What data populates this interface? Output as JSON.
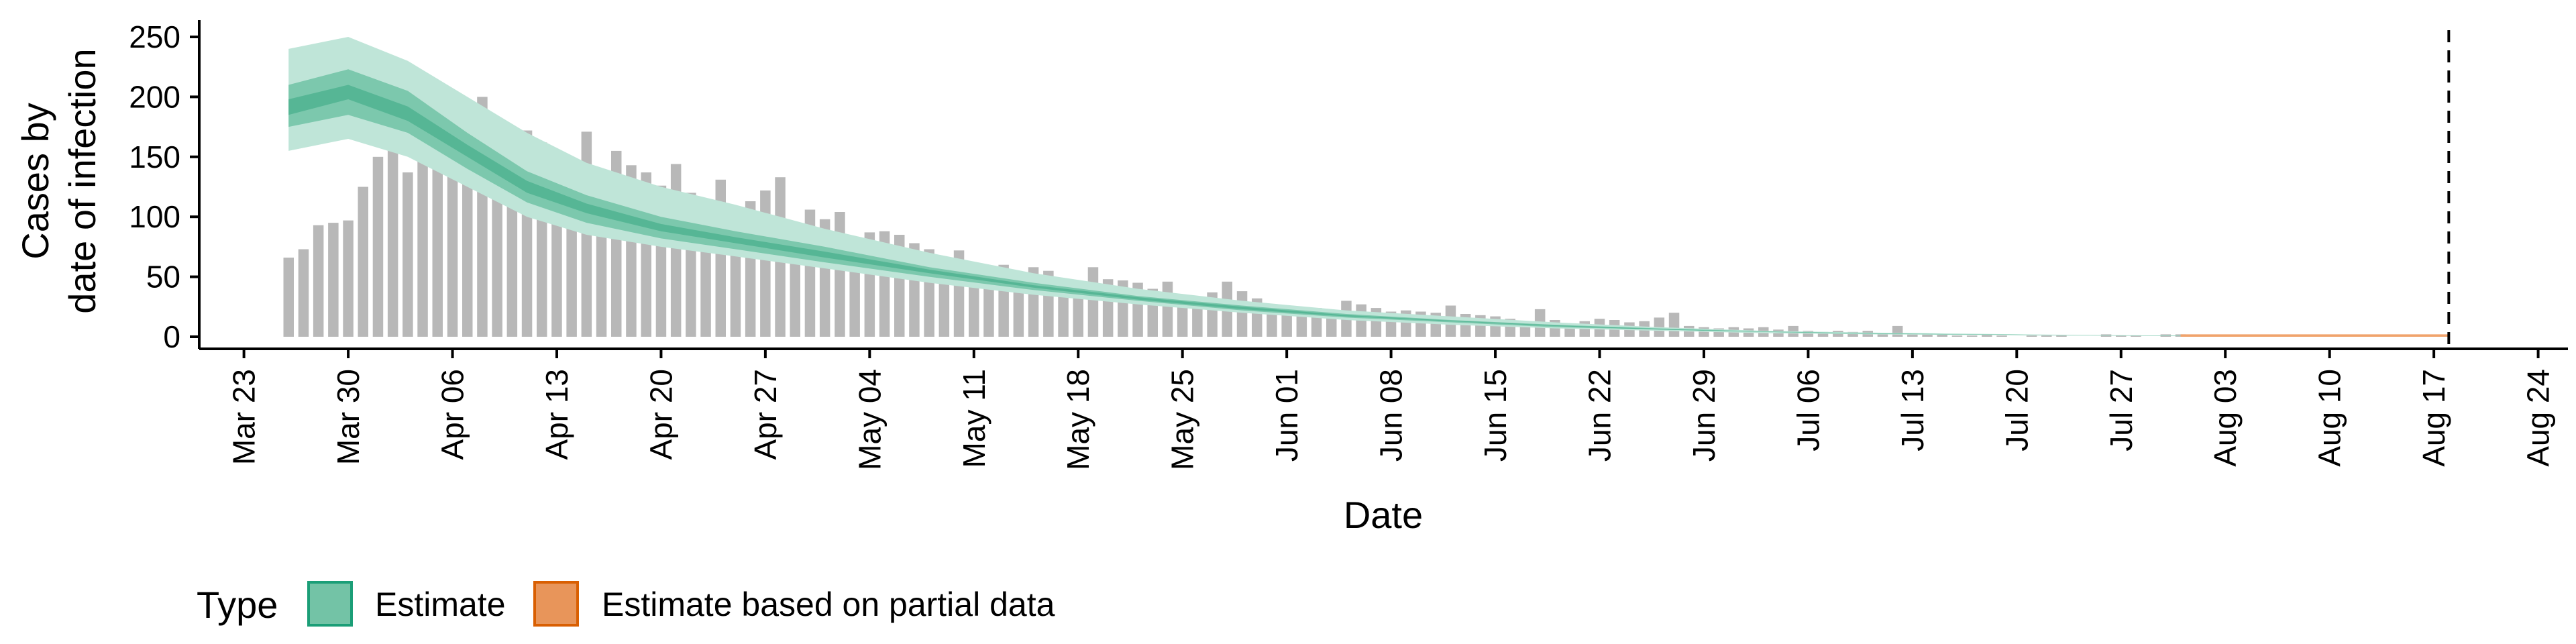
{
  "chart_data": {
    "type": "bar",
    "xlabel": "Date",
    "ylabel_lines": [
      "Cases by",
      "date of infection"
    ],
    "ylim": [
      0,
      260
    ],
    "yticks": [
      0,
      50,
      100,
      150,
      200,
      250
    ],
    "xlim": [
      "2020-03-20",
      "2020-08-26"
    ],
    "xticks": [
      {
        "date": "2020-03-23",
        "label": "Mar 23"
      },
      {
        "date": "2020-03-30",
        "label": "Mar 30"
      },
      {
        "date": "2020-04-06",
        "label": "Apr 06"
      },
      {
        "date": "2020-04-13",
        "label": "Apr 13"
      },
      {
        "date": "2020-04-20",
        "label": "Apr 20"
      },
      {
        "date": "2020-04-27",
        "label": "Apr 27"
      },
      {
        "date": "2020-05-04",
        "label": "May 04"
      },
      {
        "date": "2020-05-11",
        "label": "May 11"
      },
      {
        "date": "2020-05-18",
        "label": "May 18"
      },
      {
        "date": "2020-05-25",
        "label": "May 25"
      },
      {
        "date": "2020-06-01",
        "label": "Jun 01"
      },
      {
        "date": "2020-06-08",
        "label": "Jun 08"
      },
      {
        "date": "2020-06-15",
        "label": "Jun 15"
      },
      {
        "date": "2020-06-22",
        "label": "Jun 22"
      },
      {
        "date": "2020-06-29",
        "label": "Jun 29"
      },
      {
        "date": "2020-07-06",
        "label": "Jul 06"
      },
      {
        "date": "2020-07-13",
        "label": "Jul 13"
      },
      {
        "date": "2020-07-20",
        "label": "Jul 20"
      },
      {
        "date": "2020-07-27",
        "label": "Jul 27"
      },
      {
        "date": "2020-08-03",
        "label": "Aug 03"
      },
      {
        "date": "2020-08-10",
        "label": "Aug 10"
      },
      {
        "date": "2020-08-17",
        "label": "Aug 17"
      },
      {
        "date": "2020-08-24",
        "label": "Aug 24"
      }
    ],
    "bars_first_date": "2020-03-26",
    "bars_values": [
      66,
      73,
      93,
      95,
      97,
      125,
      150,
      160,
      137,
      157,
      177,
      167,
      158,
      200,
      160,
      159,
      172,
      162,
      142,
      143,
      171,
      120,
      155,
      143,
      137,
      126,
      144,
      120,
      104,
      131,
      100,
      113,
      122,
      133,
      90,
      106,
      98,
      104,
      76,
      87,
      88,
      85,
      78,
      73,
      65,
      72,
      60,
      55,
      60,
      50,
      58,
      55,
      48,
      40,
      58,
      48,
      47,
      45,
      40,
      46,
      35,
      31,
      37,
      46,
      38,
      32,
      27,
      25,
      24,
      24,
      20,
      30,
      27,
      24,
      21,
      22,
      21,
      20,
      26,
      19,
      18,
      17,
      15,
      13,
      23,
      14,
      11,
      13,
      15,
      14,
      12,
      13,
      16,
      20,
      9,
      8,
      7,
      8,
      7,
      8,
      6,
      9,
      5,
      4,
      5,
      4,
      5,
      3,
      9,
      2,
      2,
      2,
      1,
      1,
      2,
      1,
      0,
      1,
      1,
      1,
      0,
      0,
      2,
      1,
      1,
      0,
      2,
      2,
      1,
      0,
      1,
      1,
      0,
      0,
      0,
      0,
      0,
      0,
      0,
      0,
      0,
      0,
      0,
      0,
      0,
      0
    ],
    "estimate_dates": [
      "2020-03-26",
      "2020-03-30",
      "2020-04-03",
      "2020-04-07",
      "2020-04-11",
      "2020-04-15",
      "2020-04-20",
      "2020-04-25",
      "2020-05-01",
      "2020-05-08",
      "2020-05-15",
      "2020-05-22",
      "2020-05-29",
      "2020-06-05",
      "2020-06-12",
      "2020-06-19",
      "2020-06-26",
      "2020-07-03",
      "2020-07-10",
      "2020-07-17",
      "2020-07-24",
      "2020-07-31"
    ],
    "estimate_band_90": {
      "lower": [
        155,
        165,
        150,
        125,
        100,
        85,
        75,
        67,
        57,
        45,
        35,
        27,
        20,
        14,
        10,
        7,
        5,
        3,
        2,
        1.5,
        1,
        0.5
      ],
      "upper": [
        240,
        250,
        230,
        200,
        170,
        145,
        125,
        110,
        90,
        70,
        53,
        40,
        30,
        22,
        17,
        12,
        8,
        5,
        3.5,
        2.5,
        1.5,
        1
      ]
    },
    "estimate_band_50": {
      "lower": [
        175,
        185,
        170,
        140,
        112,
        95,
        82,
        73,
        62,
        50,
        39,
        30,
        22,
        16,
        12,
        8,
        6,
        4,
        2.5,
        1.8,
        1.2,
        0.7
      ],
      "upper": [
        210,
        223,
        205,
        170,
        138,
        118,
        100,
        88,
        75,
        58,
        45,
        34,
        26,
        19,
        14,
        10,
        7,
        4.5,
        3,
        2,
        1.4,
        0.9
      ]
    },
    "estimate_band_20": {
      "lower": [
        185,
        198,
        180,
        150,
        120,
        103,
        88,
        78,
        66,
        53,
        41,
        31,
        23,
        17,
        13,
        9,
        6,
        4,
        2.7,
        1.9,
        1.3,
        0.8
      ],
      "upper": [
        198,
        210,
        192,
        160,
        130,
        111,
        94,
        83,
        71,
        56,
        43,
        33,
        25,
        18,
        13.5,
        9.5,
        6.5,
        4.2,
        2.9,
        2,
        1.35,
        0.85
      ]
    },
    "partial_dates": [
      "2020-07-31",
      "2020-08-18"
    ],
    "partial_band": {
      "lower": [
        0,
        0
      ],
      "upper": [
        2,
        2
      ]
    },
    "reference_line_date": "2020-08-18",
    "colors": {
      "bars": "#b8b8b8",
      "estimate_90": "#bfe5d8",
      "estimate_50": "#7cc8ad",
      "estimate_20": "#56b695",
      "estimate_legend": "#73c3a6",
      "estimate_legend_border": "#1b9e77",
      "partial": "#f0a36c",
      "partial_legend": "#e8955a",
      "partial_legend_border": "#d95f02"
    },
    "legend": {
      "title": "Type",
      "items": [
        "Estimate",
        "Estimate based on partial data"
      ]
    }
  }
}
